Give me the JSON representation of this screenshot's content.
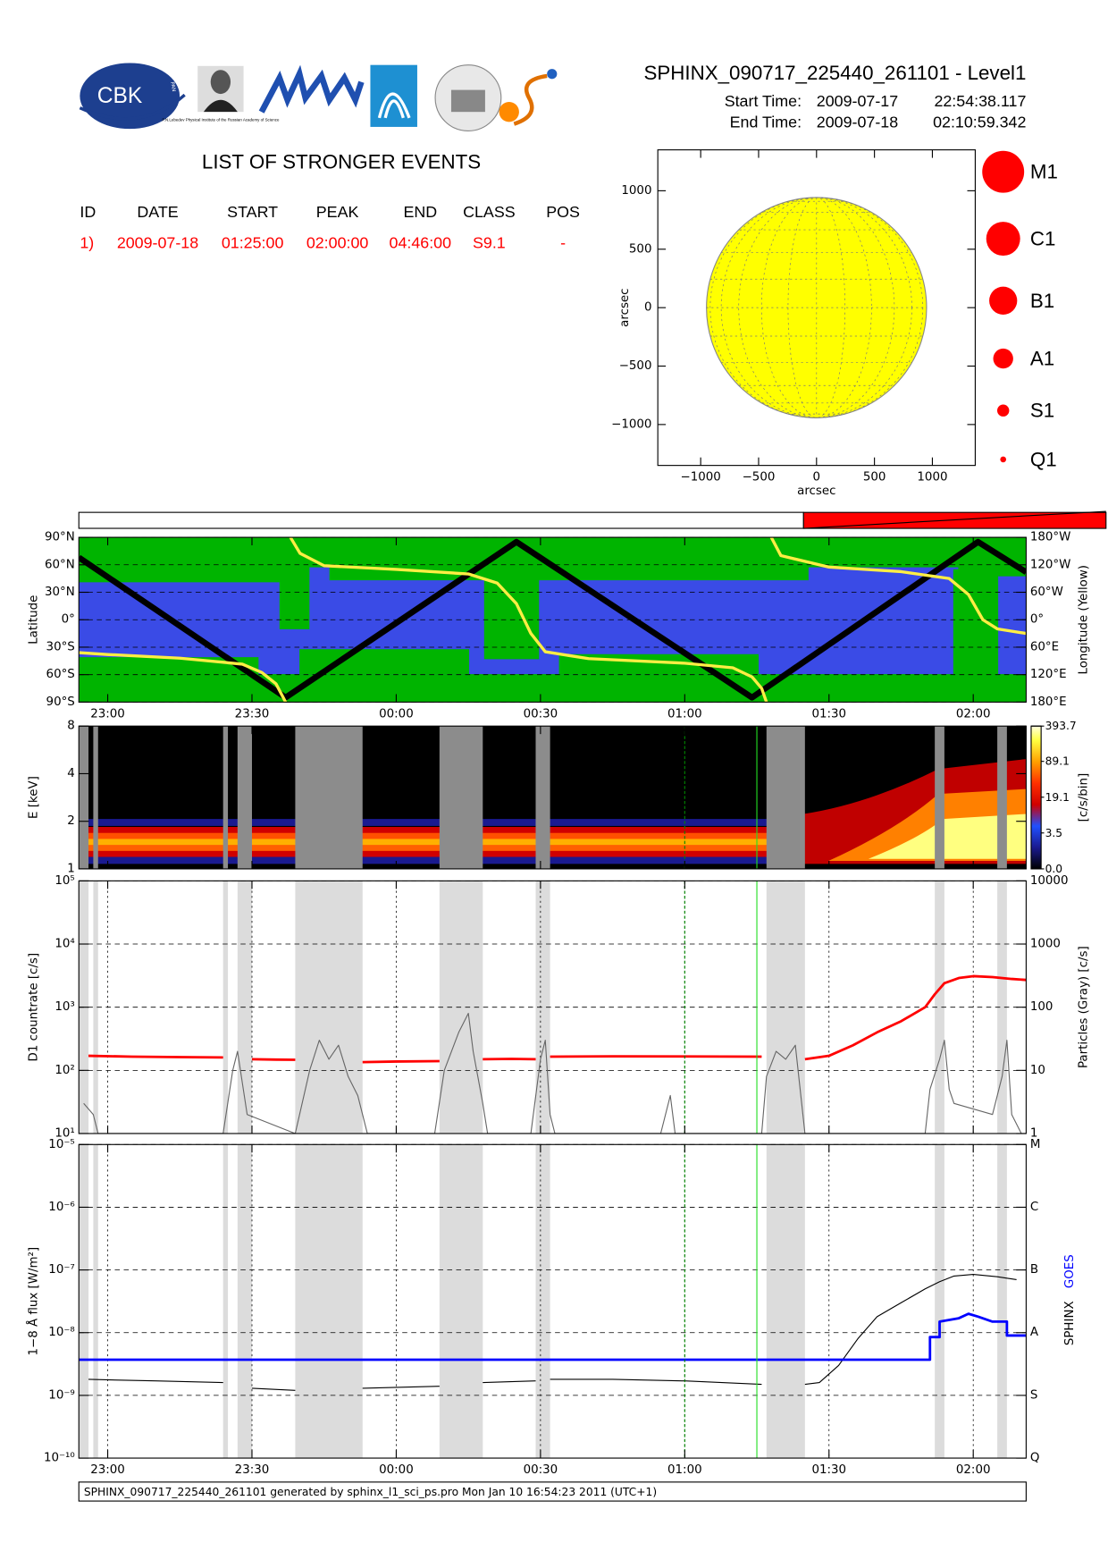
{
  "header": {
    "title": "SPHINX_090717_225440_261101 - Level1",
    "start_label": "Start Time:",
    "start_date": "2009-07-17",
    "start_time": "22:54:38.117",
    "end_label": "End Time:",
    "end_date": "2009-07-18",
    "end_time": "02:10:59.342"
  },
  "logos": {
    "cbk": "CBK",
    "pan": "PAN",
    "lebedev": "P.N.Lebedev Physical Institute of the Russian Academy of Science"
  },
  "events": {
    "title": "LIST OF STRONGER EVENTS",
    "columns": [
      "ID",
      "DATE",
      "START",
      "PEAK",
      "END",
      "CLASS",
      "POS"
    ],
    "rows": [
      [
        "1)",
        "2009-07-18",
        "01:25:00",
        "02:00:00",
        "04:46:00",
        "S9.1",
        "-"
      ]
    ]
  },
  "class_legend": [
    "M1",
    "C1",
    "B1",
    "A1",
    "S1",
    "Q1"
  ],
  "data_gaps": [
    [
      "22:54",
      "22:56"
    ],
    [
      "22:57",
      "22:58"
    ],
    [
      "23:24",
      "23:25"
    ],
    [
      "23:27",
      "23:30"
    ],
    [
      "23:39",
      "23:53"
    ],
    [
      "00:09",
      "00:18"
    ],
    [
      "00:29",
      "00:32"
    ],
    [
      "01:17",
      "01:25"
    ],
    [
      "01:52",
      "01:54"
    ],
    [
      "02:05",
      "02:07"
    ]
  ],
  "markers": [
    {
      "time": "01:00",
      "color": "#008800"
    },
    {
      "time": "01:15",
      "color": "#22dd22"
    }
  ],
  "chart_data": [
    {
      "type": "disk",
      "xlabel": "arcsec",
      "ylabel": "arcsec",
      "xlim": [
        -1370,
        1370
      ],
      "ylim": [
        -1350,
        1350
      ],
      "xticks": [
        {
          "value": -1000,
          "label": "−1000"
        },
        {
          "value": -500,
          "label": "−500"
        },
        0,
        500,
        1000
      ],
      "yticks": [
        {
          "value": -1000,
          "label": "−1000"
        },
        {
          "value": -500,
          "label": "−500"
        },
        0,
        500,
        1000
      ],
      "radius": 950,
      "color": "#ffff00"
    },
    {
      "type": "line",
      "ylabel": "Latitude",
      "y2label": "Longitude (Yellow)",
      "grid": "y",
      "xlim": [
        "22:54",
        "02:11"
      ],
      "xticks": [
        "23:00",
        "23:30",
        "00:00",
        "00:30",
        "01:00",
        "01:30",
        "02:00"
      ],
      "ylim": [
        -90,
        90
      ],
      "yticks": [
        {
          "value": -90,
          "label": "90°S"
        },
        {
          "value": -60,
          "label": "60°S"
        },
        {
          "value": -30,
          "label": "30°S"
        },
        {
          "value": 0,
          "label": "0°"
        },
        {
          "value": 30,
          "label": "30°N"
        },
        {
          "value": 60,
          "label": "60°N"
        },
        {
          "value": 90,
          "label": "90°N"
        }
      ],
      "y2lim": [
        180,
        -180
      ],
      "y2ticks": [
        {
          "value": 180,
          "label": "180°E"
        },
        {
          "value": 120,
          "label": "120°E"
        },
        {
          "value": 60,
          "label": "60°E"
        },
        {
          "value": 0,
          "label": "0°"
        },
        {
          "value": -60,
          "label": "60°W"
        },
        {
          "value": -120,
          "label": "120°W"
        },
        {
          "value": -180,
          "label": "180°W"
        }
      ],
      "series": [
        {
          "color": "#000000",
          "x": [
            "22:54",
            "23:37",
            "00:25",
            "01:14",
            "02:01",
            "02:11"
          ],
          "values": [
            68,
            -85,
            85,
            -85,
            85,
            52
          ]
        },
        {
          "color": "#ffee44",
          "axis": "y2",
          "x": [
            "22:54",
            "23:00",
            "23:15",
            "23:28",
            "23:32",
            "23:35",
            "23:37",
            "23:37",
            "23:38",
            "23:40",
            "23:45",
            "00:00",
            "00:15",
            "00:21",
            "00:25",
            "00:28",
            "00:31",
            "00:40",
            "01:00",
            "01:10",
            "01:14",
            "01:16",
            "01:17",
            "01:17",
            "01:18",
            "01:20",
            "01:30",
            "01:45",
            "01:55",
            "01:59",
            "02:02",
            "02:05",
            "02:11"
          ],
          "values": [
            72,
            76,
            84,
            97,
            115,
            140,
            180,
            null,
            -180,
            -145,
            -118,
            -110,
            -100,
            -80,
            -35,
            30,
            70,
            85,
            95,
            105,
            125,
            150,
            180,
            null,
            -180,
            -140,
            -115,
            -105,
            -90,
            -55,
            0,
            20,
            30
          ]
        }
      ]
    },
    {
      "type": "spectrogram",
      "ylabel": "E [keV]",
      "log": true,
      "ylim": [
        1,
        8
      ],
      "yticks": [
        1,
        2,
        4,
        8
      ],
      "colorbar_label": "[c/s/bin]",
      "clim": [
        0,
        393.7
      ],
      "colorbar_ticks": [
        {
          "value": 0,
          "label": "0.0"
        },
        3.5,
        19.1,
        89.1,
        393.7
      ]
    },
    {
      "type": "line",
      "ylabel": "D1 countrate [c/s]",
      "y2label": "Particles (Gray) [c/s]",
      "log": true,
      "grid": "both",
      "ylim": [
        10,
        100000
      ],
      "yticks": [
        {
          "value": 10,
          "label": "10¹"
        },
        {
          "value": 100,
          "label": "10²"
        },
        {
          "value": 1000,
          "label": "10³"
        },
        {
          "value": 10000,
          "label": "10⁴"
        },
        {
          "value": 100000,
          "label": "10⁵"
        }
      ],
      "y2lim": [
        1,
        10000
      ],
      "y2ticks": [
        1,
        10,
        100,
        1000,
        10000
      ],
      "series": [
        {
          "color": "#ff0000",
          "x": [
            "22:56",
            "23:05",
            "23:15",
            "23:24",
            "23:25",
            "23:30",
            "23:35",
            "23:39",
            "23:40",
            "23:53",
            "00:00",
            "00:09",
            "00:10",
            "00:18",
            "00:24",
            "00:29",
            "00:30",
            "00:32",
            "00:45",
            "01:00",
            "01:16",
            "01:17",
            "01:25",
            "01:30",
            "01:35",
            "01:40",
            "01:45",
            "01:50",
            "01:52",
            "01:54",
            "01:57",
            "02:00",
            "02:04",
            "02:08",
            "02:11"
          ],
          "values": [
            170,
            165,
            162,
            160,
            null,
            150,
            148,
            147,
            null,
            135,
            138,
            140,
            null,
            150,
            152,
            150,
            null,
            165,
            167,
            166,
            165,
            null,
            150,
            170,
            250,
            400,
            600,
            1000,
            1600,
            2400,
            2900,
            3100,
            3000,
            2800,
            2700
          ]
        },
        {
          "color": "#666666",
          "axis": "y2",
          "x": [
            "22:55",
            "22:57",
            "22:58",
            "23:24",
            "23:26",
            "23:27",
            "23:29",
            "23:39",
            "23:42",
            "23:44",
            "23:46",
            "23:48",
            "23:50",
            "23:52",
            "23:53",
            "23:54",
            "00:08",
            "00:10",
            "00:13",
            "00:15",
            "00:16",
            "00:18",
            "00:19",
            "00:28",
            "00:30",
            "00:31",
            "00:32",
            "00:33",
            "00:55",
            "00:57",
            "00:58",
            "01:16",
            "01:17",
            "01:19",
            "01:21",
            "01:23",
            "01:24",
            "01:25",
            "01:50",
            "01:51",
            "01:53",
            "01:54",
            "01:55",
            "01:56",
            "02:04",
            "02:06",
            "02:07",
            "02:08",
            "02:10"
          ],
          "values": [
            3,
            2,
            1,
            1,
            10,
            20,
            2,
            1,
            10,
            30,
            15,
            25,
            8,
            4,
            2,
            1,
            1,
            10,
            40,
            80,
            20,
            3,
            1,
            1,
            15,
            30,
            2,
            1,
            1,
            4,
            1,
            1,
            8,
            20,
            15,
            25,
            5,
            1,
            1,
            5,
            15,
            30,
            5,
            3,
            2,
            8,
            30,
            2,
            1
          ]
        }
      ]
    },
    {
      "type": "line",
      "ylabel": "1−8 Å flux [W/m²]",
      "log": true,
      "grid": "both",
      "xticks": [
        "23:00",
        "23:30",
        "00:00",
        "00:30",
        "01:00",
        "01:30",
        "02:00"
      ],
      "ylim": [
        1e-10,
        1e-05
      ],
      "yticks": [
        {
          "value": 1e-10,
          "label": "10⁻¹⁰"
        },
        {
          "value": 1e-09,
          "label": "10⁻⁹"
        },
        {
          "value": 1e-08,
          "label": "10⁻⁸"
        },
        {
          "value": 1e-07,
          "label": "10⁻⁷"
        },
        {
          "value": 1e-06,
          "label": "10⁻⁶"
        },
        {
          "value": 1e-05,
          "label": "10⁻⁵"
        }
      ],
      "y2lim": [
        1e-10,
        1e-05
      ],
      "y2ticks": [
        {
          "value": 1e-10,
          "label": "Q"
        },
        {
          "value": 1e-09,
          "label": "S"
        },
        {
          "value": 1e-08,
          "label": "A"
        },
        {
          "value": 1e-07,
          "label": "B"
        },
        {
          "value": 1e-06,
          "label": "C"
        },
        {
          "value": 1e-05,
          "label": "M"
        }
      ],
      "series": [
        {
          "name": "SPHINX",
          "color": "#000000",
          "x": [
            "22:56",
            "23:10",
            "23:24",
            "23:25",
            "23:30",
            "23:39",
            "23:40",
            "23:53",
            "00:09",
            "00:10",
            "00:18",
            "00:29",
            "00:30",
            "00:32",
            "00:45",
            "01:00",
            "01:16",
            "01:17",
            "01:25",
            "01:28",
            "01:32",
            "01:36",
            "01:40",
            "01:45",
            "01:50",
            "01:53",
            "01:56",
            "02:00",
            "02:05",
            "02:09"
          ],
          "values": [
            1.8e-09,
            1.7e-09,
            1.6e-09,
            null,
            1.3e-09,
            1.2e-09,
            null,
            1.3e-09,
            1.4e-09,
            null,
            1.6e-09,
            1.7e-09,
            null,
            1.8e-09,
            1.8e-09,
            1.7e-09,
            1.5e-09,
            null,
            1.5e-09,
            1.6e-09,
            3e-09,
            8e-09,
            1.8e-08,
            3e-08,
            5e-08,
            6.5e-08,
            8e-08,
            8.5e-08,
            7.8e-08,
            7e-08
          ]
        },
        {
          "name": "GOES",
          "color": "#0000ff",
          "x": [
            "22:54",
            "01:51",
            "01:51",
            "01:53",
            "01:53",
            "01:57",
            "01:59",
            "02:01",
            "02:04",
            "02:07",
            "02:07",
            "02:11"
          ],
          "values": [
            3.7e-09,
            3.7e-09,
            8.5e-09,
            8.5e-09,
            1.5e-08,
            1.7e-08,
            2e-08,
            1.8e-08,
            1.5e-08,
            1.5e-08,
            9e-09,
            9e-09
          ]
        }
      ]
    }
  ],
  "footer": "SPHINX_090717_225440_261101 generated by sphinx_l1_sci_ps.pro Mon Jan 10 16:54:23 2011 (UTC+1)"
}
